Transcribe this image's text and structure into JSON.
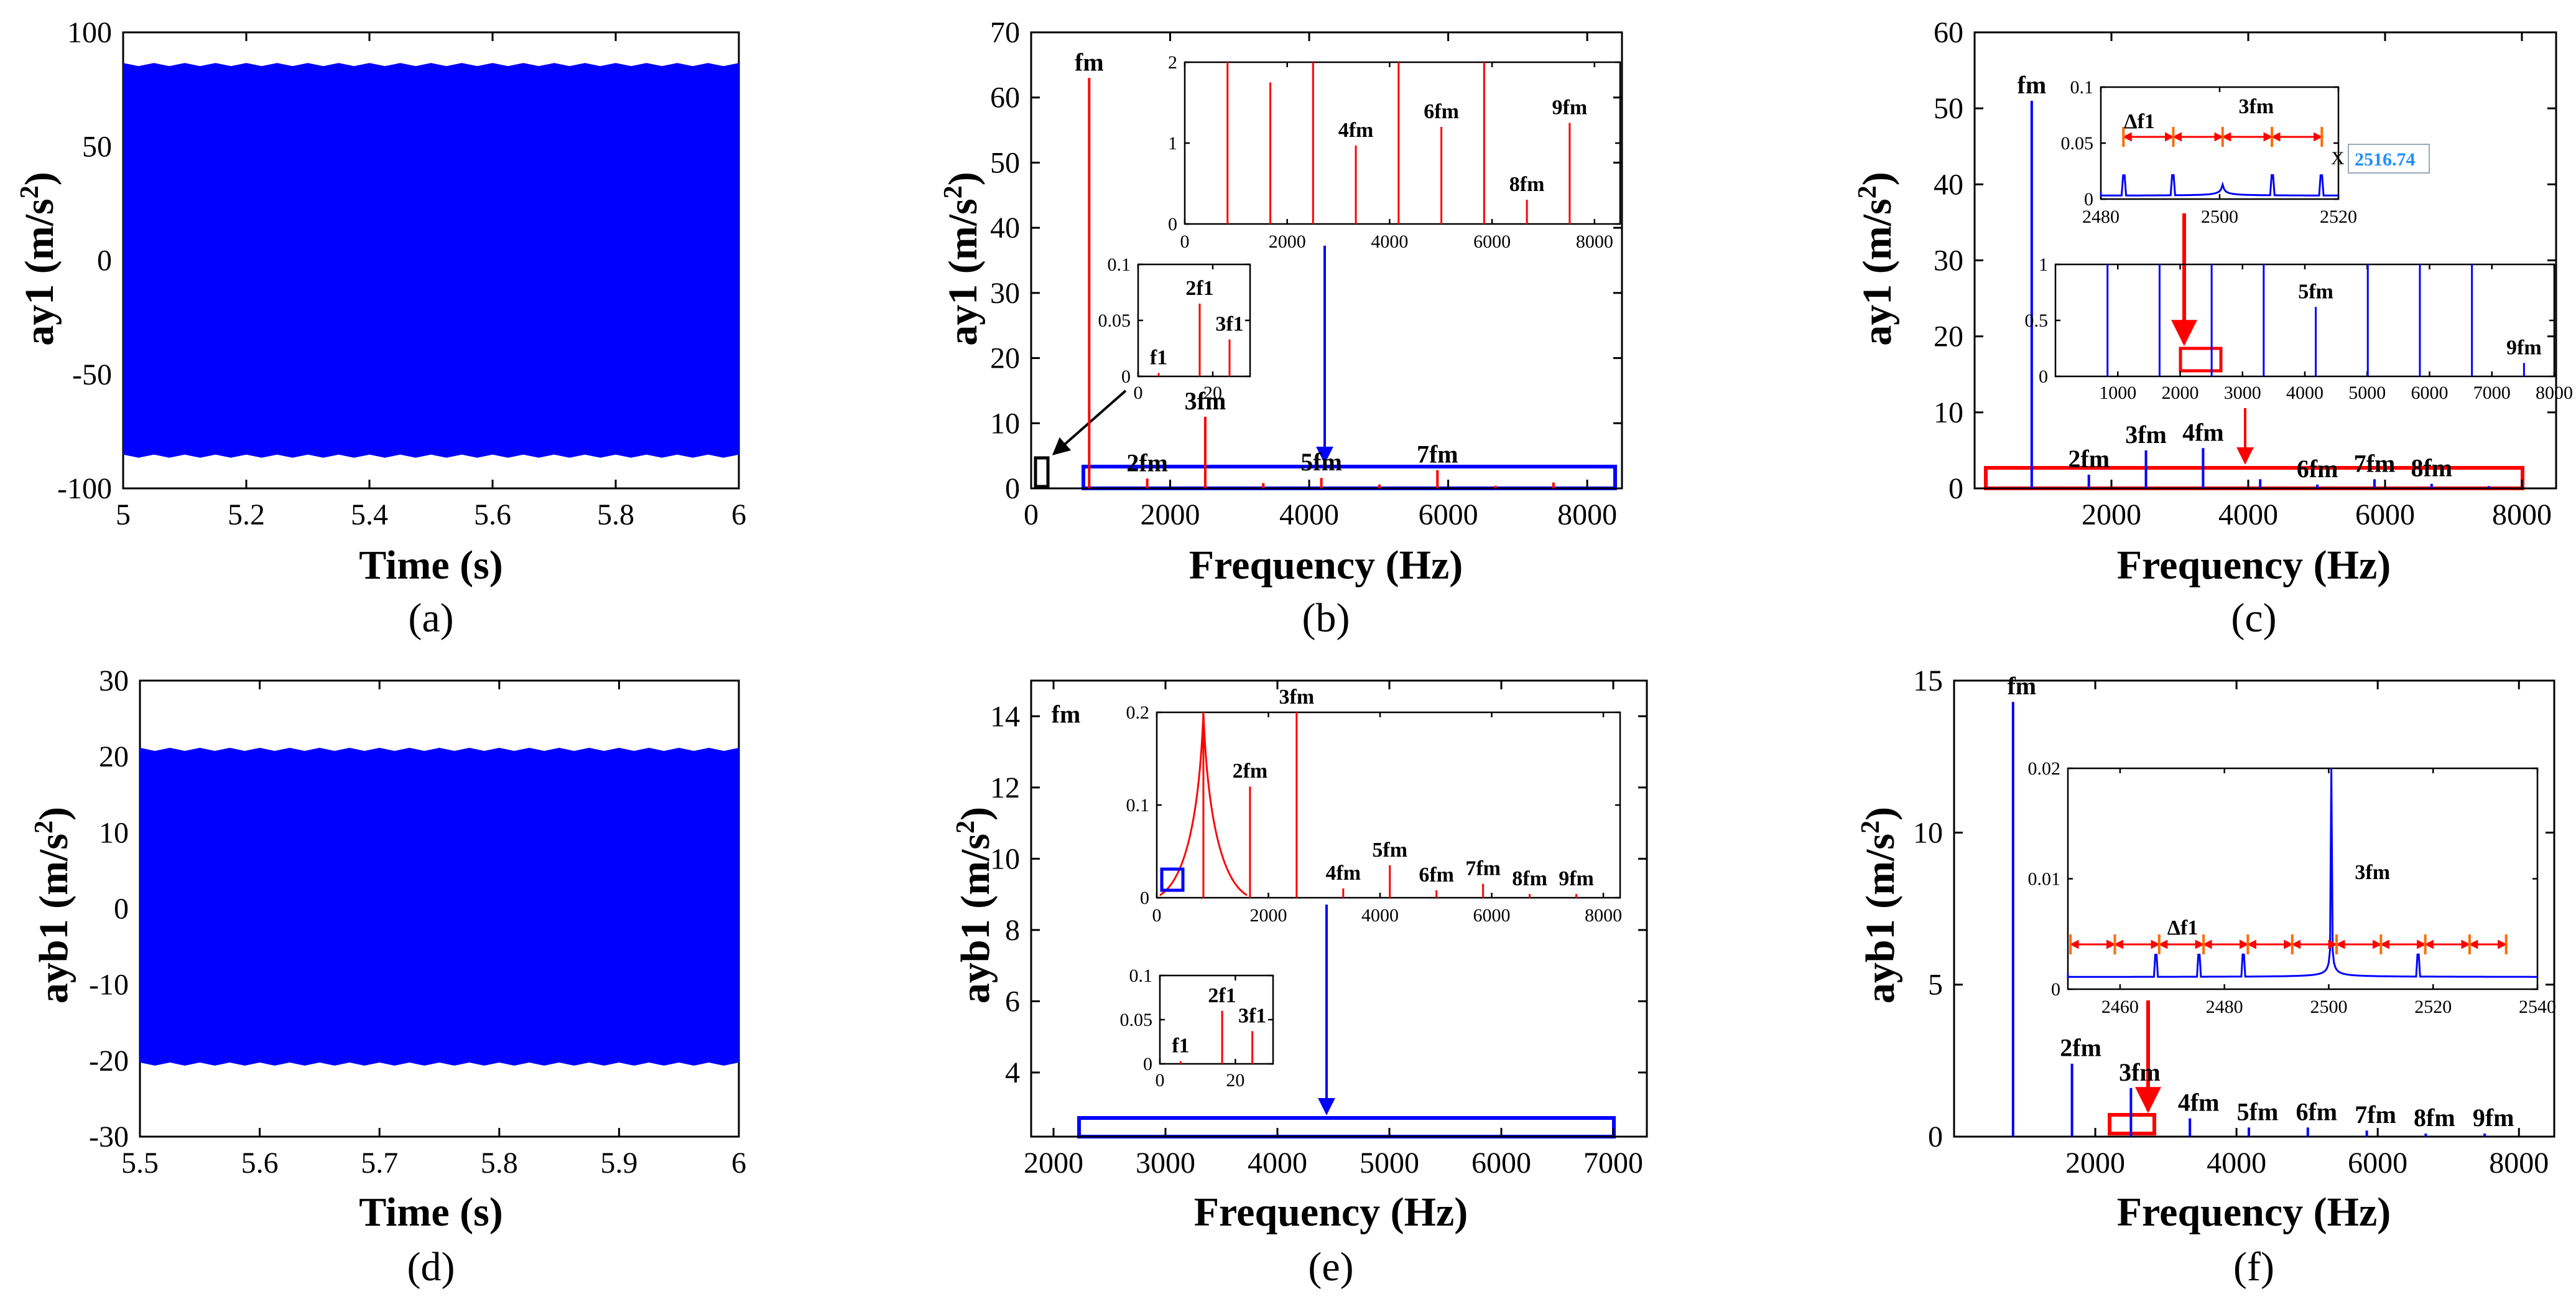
{
  "colors": {
    "blue": "#0000FF",
    "red": "#FF0000",
    "black": "#000000",
    "readout": "#1E90FF"
  },
  "chart_data": [
    {
      "id": "a",
      "type": "area",
      "label": "a",
      "xlabel": "Time (s)",
      "ylabel": "ay1 (m/s²)",
      "ylabel_main": "ay1 (m/s",
      "ylabel_sup": "2",
      "ylabel_tail": ")",
      "xlim": [
        5,
        6
      ],
      "ylim": [
        -100,
        100
      ],
      "xticks": [
        5,
        5.2,
        5.4,
        5.6,
        5.8,
        6
      ],
      "xtick_labels": [
        "5",
        "5.2",
        "5.4",
        "5.6",
        "5.8",
        "6"
      ],
      "yticks": [
        -100,
        -50,
        0,
        50,
        100
      ],
      "ytick_labels": [
        "-100",
        "-50",
        "0",
        "50",
        "100"
      ],
      "envelope": {
        "upper": 86,
        "lower": -86
      }
    },
    {
      "id": "b",
      "type": "line",
      "label": "b",
      "xlabel": "Frequency (Hz)",
      "ylabel": "ay1 (m/s²)",
      "ylabel_main": "ay1 (m/s",
      "ylabel_sup": "2",
      "ylabel_tail": ")",
      "xlim": [
        0,
        8500
      ],
      "ylim": [
        0,
        70
      ],
      "xticks": [
        0,
        2000,
        4000,
        6000,
        8000
      ],
      "xtick_labels": [
        "0",
        "2000",
        "4000",
        "6000",
        "8000"
      ],
      "yticks": [
        0,
        10,
        20,
        30,
        40,
        50,
        60,
        70
      ],
      "ytick_labels": [
        "0",
        "10",
        "20",
        "30",
        "40",
        "50",
        "60",
        "70"
      ],
      "peaks": [
        {
          "x": 835,
          "y": 63,
          "label": "fm"
        },
        {
          "x": 1670,
          "y": 1.5,
          "label": "2fm"
        },
        {
          "x": 2505,
          "y": 11,
          "label": "3fm"
        },
        {
          "x": 3340,
          "y": 0.8,
          "label": ""
        },
        {
          "x": 4175,
          "y": 1.6,
          "label": "5fm"
        },
        {
          "x": 5010,
          "y": 0.6,
          "label": ""
        },
        {
          "x": 5845,
          "y": 2.8,
          "label": "7fm"
        },
        {
          "x": 6680,
          "y": 0.4,
          "label": ""
        },
        {
          "x": 7515,
          "y": 0.9,
          "label": ""
        }
      ],
      "insets": [
        {
          "name": "spectrum-zoom",
          "xlim": [
            0,
            8500
          ],
          "ylim": [
            0,
            2
          ],
          "xticks": [
            0,
            2000,
            4000,
            6000,
            8000
          ],
          "xtick_labels": [
            "0",
            "2000",
            "4000",
            "6000",
            "8000"
          ],
          "yticks": [
            0,
            1,
            2
          ],
          "ytick_labels": [
            "0",
            "1",
            "2"
          ],
          "peaks": [
            {
              "x": 835,
              "y": 2,
              "label": ""
            },
            {
              "x": 1670,
              "y": 1.75,
              "label": ""
            },
            {
              "x": 2505,
              "y": 2,
              "label": ""
            },
            {
              "x": 3340,
              "y": 0.97,
              "label": "4fm"
            },
            {
              "x": 4175,
              "y": 2,
              "label": ""
            },
            {
              "x": 5010,
              "y": 1.2,
              "label": "6fm"
            },
            {
              "x": 5845,
              "y": 2,
              "label": ""
            },
            {
              "x": 6680,
              "y": 0.3,
              "label": "8fm"
            },
            {
              "x": 7515,
              "y": 1.25,
              "label": "9fm"
            }
          ]
        },
        {
          "name": "low-frequency-zoom",
          "xlim": [
            0,
            30
          ],
          "ylim": [
            0,
            0.1
          ],
          "xticks": [
            0,
            20
          ],
          "xtick_labels": [
            "0",
            "20"
          ],
          "yticks": [
            0,
            0.05,
            0.1
          ],
          "ytick_labels": [
            "0",
            "0.05",
            "0.1"
          ],
          "peaks": [
            {
              "x": 5.5,
              "y": 0.003,
              "label": "f1"
            },
            {
              "x": 16.5,
              "y": 0.065,
              "label": "2f1"
            },
            {
              "x": 24.5,
              "y": 0.033,
              "label": "3f1"
            }
          ]
        }
      ]
    },
    {
      "id": "c",
      "type": "line",
      "label": "c",
      "xlabel": "Frequency (Hz)",
      "ylabel": "ay1 (m/s²)",
      "ylabel_main": "ay1 (m/s",
      "ylabel_sup": "2",
      "ylabel_tail": ")",
      "xlim": [
        0,
        8500
      ],
      "ylim": [
        0,
        60
      ],
      "xticks": [
        2000,
        4000,
        6000,
        8000
      ],
      "xtick_labels": [
        "2000",
        "4000",
        "6000",
        "8000"
      ],
      "yticks": [
        0,
        10,
        20,
        30,
        40,
        50,
        60
      ],
      "ytick_labels": [
        "0",
        "10",
        "20",
        "30",
        "40",
        "50",
        "60"
      ],
      "peaks": [
        {
          "x": 835,
          "y": 51,
          "label": "fm"
        },
        {
          "x": 1670,
          "y": 1.8,
          "label": "2fm"
        },
        {
          "x": 2505,
          "y": 5,
          "label": "3fm"
        },
        {
          "x": 3340,
          "y": 5.3,
          "label": "4fm"
        },
        {
          "x": 4175,
          "y": 1.2,
          "label": ""
        },
        {
          "x": 5010,
          "y": 0.5,
          "label": "6fm"
        },
        {
          "x": 5845,
          "y": 1.2,
          "label": "7fm"
        },
        {
          "x": 6680,
          "y": 0.6,
          "label": "8fm"
        },
        {
          "x": 7515,
          "y": 0.3,
          "label": ""
        }
      ],
      "insets": [
        {
          "name": "3fm-sidebands-zoom",
          "xlim": [
            2480,
            2520
          ],
          "ylim": [
            0,
            0.1
          ],
          "xticks": [
            2480,
            2500,
            2520
          ],
          "xtick_labels": [
            "2480",
            "2500",
            "2520"
          ],
          "yticks": [
            0,
            0.05,
            0.1
          ],
          "ytick_labels": [
            "0",
            "0.05",
            "0.1"
          ],
          "peaks": [
            {
              "x": 2500.5,
              "y": 0.1,
              "label": "3fm"
            }
          ],
          "sideband_label": "Δf1",
          "datatip": {
            "prefix": "X",
            "value": "2516.74"
          }
        },
        {
          "name": "spectrum-zoom",
          "xlim": [
            0,
            8000
          ],
          "ylim": [
            0,
            1
          ],
          "xticks": [
            1000,
            2000,
            3000,
            4000,
            5000,
            6000,
            7000,
            8000
          ],
          "xtick_labels": [
            "1000",
            "2000",
            "3000",
            "4000",
            "5000",
            "6000",
            "7000",
            "8000"
          ],
          "yticks": [
            0,
            0.5,
            1
          ],
          "ytick_labels": [
            "0",
            "0.5",
            "1"
          ],
          "peaks": [
            {
              "x": 835,
              "y": 1,
              "label": ""
            },
            {
              "x": 1670,
              "y": 1,
              "label": ""
            },
            {
              "x": 2505,
              "y": 1,
              "label": ""
            },
            {
              "x": 3340,
              "y": 1,
              "label": ""
            },
            {
              "x": 4175,
              "y": 0.62,
              "label": "5fm"
            },
            {
              "x": 5010,
              "y": 1,
              "label": ""
            },
            {
              "x": 5845,
              "y": 1,
              "label": ""
            },
            {
              "x": 6680,
              "y": 1,
              "label": ""
            },
            {
              "x": 7515,
              "y": 0.12,
              "label": "9fm"
            }
          ]
        }
      ]
    },
    {
      "id": "d",
      "type": "area",
      "label": "d",
      "xlabel": "Time (s)",
      "ylabel": "ayb1 (m/s²)",
      "ylabel_main": "ayb1 (m/s",
      "ylabel_sup": "2",
      "ylabel_tail": ")",
      "xlim": [
        5.5,
        6
      ],
      "ylim": [
        -30,
        30
      ],
      "xticks": [
        5.5,
        5.6,
        5.7,
        5.8,
        5.9,
        6
      ],
      "xtick_labels": [
        "5.5",
        "5.6",
        "5.7",
        "5.8",
        "5.9",
        "6"
      ],
      "yticks": [
        -30,
        -20,
        -10,
        0,
        10,
        20,
        30
      ],
      "ytick_labels": [
        "-30",
        "-20",
        "-10",
        "0",
        "10",
        "20",
        "30"
      ],
      "envelope": {
        "upper": 21,
        "lower": -20.5
      }
    },
    {
      "id": "e",
      "type": "line",
      "label": "e",
      "xlabel": "Frequency (Hz)",
      "ylabel": "ayb1 (m/s²)",
      "ylabel_main": "ayb1 (m/s",
      "ylabel_sup": "2",
      "ylabel_tail": ")",
      "xlim": [
        1800,
        7300
      ],
      "ylim": [
        2.2,
        15
      ],
      "xticks": [
        2000,
        3000,
        4000,
        5000,
        6000,
        7000
      ],
      "xtick_labels": [
        "2000",
        "3000",
        "4000",
        "5000",
        "6000",
        "7000"
      ],
      "yticks": [
        4,
        6,
        8,
        10,
        12,
        14
      ],
      "ytick_labels": [
        "4",
        "6",
        "8",
        "10",
        "12",
        "14"
      ],
      "peaks": [
        {
          "x": 0,
          "y": 14,
          "label": "fm"
        }
      ],
      "insets": [
        {
          "name": "spectrum-zoom",
          "xlim": [
            0,
            8300
          ],
          "ylim": [
            0,
            0.2
          ],
          "xticks": [
            0,
            2000,
            4000,
            6000,
            8000
          ],
          "xtick_labels": [
            "0",
            "2000",
            "4000",
            "6000",
            "8000"
          ],
          "yticks": [
            0,
            0.1,
            0.2
          ],
          "ytick_labels": [
            "0",
            "0.1",
            "0.2"
          ],
          "peaks": [
            {
              "x": 835,
              "y": 0.2,
              "label": ""
            },
            {
              "x": 1670,
              "y": 0.12,
              "label": "2fm"
            },
            {
              "x": 2505,
              "y": 0.2,
              "label": "3fm"
            },
            {
              "x": 3340,
              "y": 0.01,
              "label": "4fm"
            },
            {
              "x": 4175,
              "y": 0.035,
              "label": "5fm"
            },
            {
              "x": 5010,
              "y": 0.008,
              "label": "6fm"
            },
            {
              "x": 5845,
              "y": 0.015,
              "label": "7fm"
            },
            {
              "x": 6680,
              "y": 0.004,
              "label": "8fm"
            },
            {
              "x": 7515,
              "y": 0.004,
              "label": "9fm"
            }
          ]
        },
        {
          "name": "low-frequency-zoom",
          "xlim": [
            0,
            30
          ],
          "ylim": [
            0,
            0.1
          ],
          "xticks": [
            0,
            20
          ],
          "xtick_labels": [
            "0",
            "20"
          ],
          "yticks": [
            0,
            0.05,
            0.1
          ],
          "ytick_labels": [
            "0",
            "0.05",
            "0.1"
          ],
          "peaks": [
            {
              "x": 5.5,
              "y": 0.003,
              "label": "f1"
            },
            {
              "x": 16.5,
              "y": 0.06,
              "label": "2f1"
            },
            {
              "x": 24.5,
              "y": 0.037,
              "label": "3f1"
            }
          ]
        }
      ]
    },
    {
      "id": "f",
      "type": "line",
      "label": "f",
      "xlabel": "Frequency (Hz)",
      "ylabel": "ayb1 (m/s²)",
      "ylabel_main": "ayb1 (m/s",
      "ylabel_sup": "2",
      "ylabel_tail": ")",
      "xlim": [
        0,
        8500
      ],
      "ylim": [
        0,
        15
      ],
      "xticks": [
        2000,
        4000,
        6000,
        8000
      ],
      "xtick_labels": [
        "2000",
        "4000",
        "6000",
        "8000"
      ],
      "yticks": [
        0,
        5,
        10,
        15
      ],
      "ytick_labels": [
        "0",
        "5",
        "10",
        "15"
      ],
      "peaks": [
        {
          "x": 835,
          "y": 14.3,
          "label": "fm"
        },
        {
          "x": 1670,
          "y": 2.4,
          "label": "2fm"
        },
        {
          "x": 2505,
          "y": 1.6,
          "label": "3fm"
        },
        {
          "x": 3340,
          "y": 0.6,
          "label": "4fm"
        },
        {
          "x": 4175,
          "y": 0.3,
          "label": "5fm"
        },
        {
          "x": 5010,
          "y": 0.3,
          "label": "6fm"
        },
        {
          "x": 5845,
          "y": 0.2,
          "label": "7fm"
        },
        {
          "x": 6680,
          "y": 0.1,
          "label": "8fm"
        },
        {
          "x": 7515,
          "y": 0.1,
          "label": "9fm"
        }
      ],
      "insets": [
        {
          "name": "3fm-sidebands-zoom",
          "xlim": [
            2450,
            2540
          ],
          "ylim": [
            0,
            0.02
          ],
          "xticks": [
            2460,
            2480,
            2500,
            2520,
            2540
          ],
          "xtick_labels": [
            "2460",
            "2480",
            "2500",
            "2520",
            "2540"
          ],
          "yticks": [
            0,
            0.01,
            0.02
          ],
          "ytick_labels": [
            "0",
            "0.01",
            "0.02"
          ],
          "peaks": [
            {
              "x": 2500.5,
              "y": 0.02,
              "label": "3fm"
            }
          ],
          "sideband_label": "Δf1"
        }
      ]
    }
  ]
}
